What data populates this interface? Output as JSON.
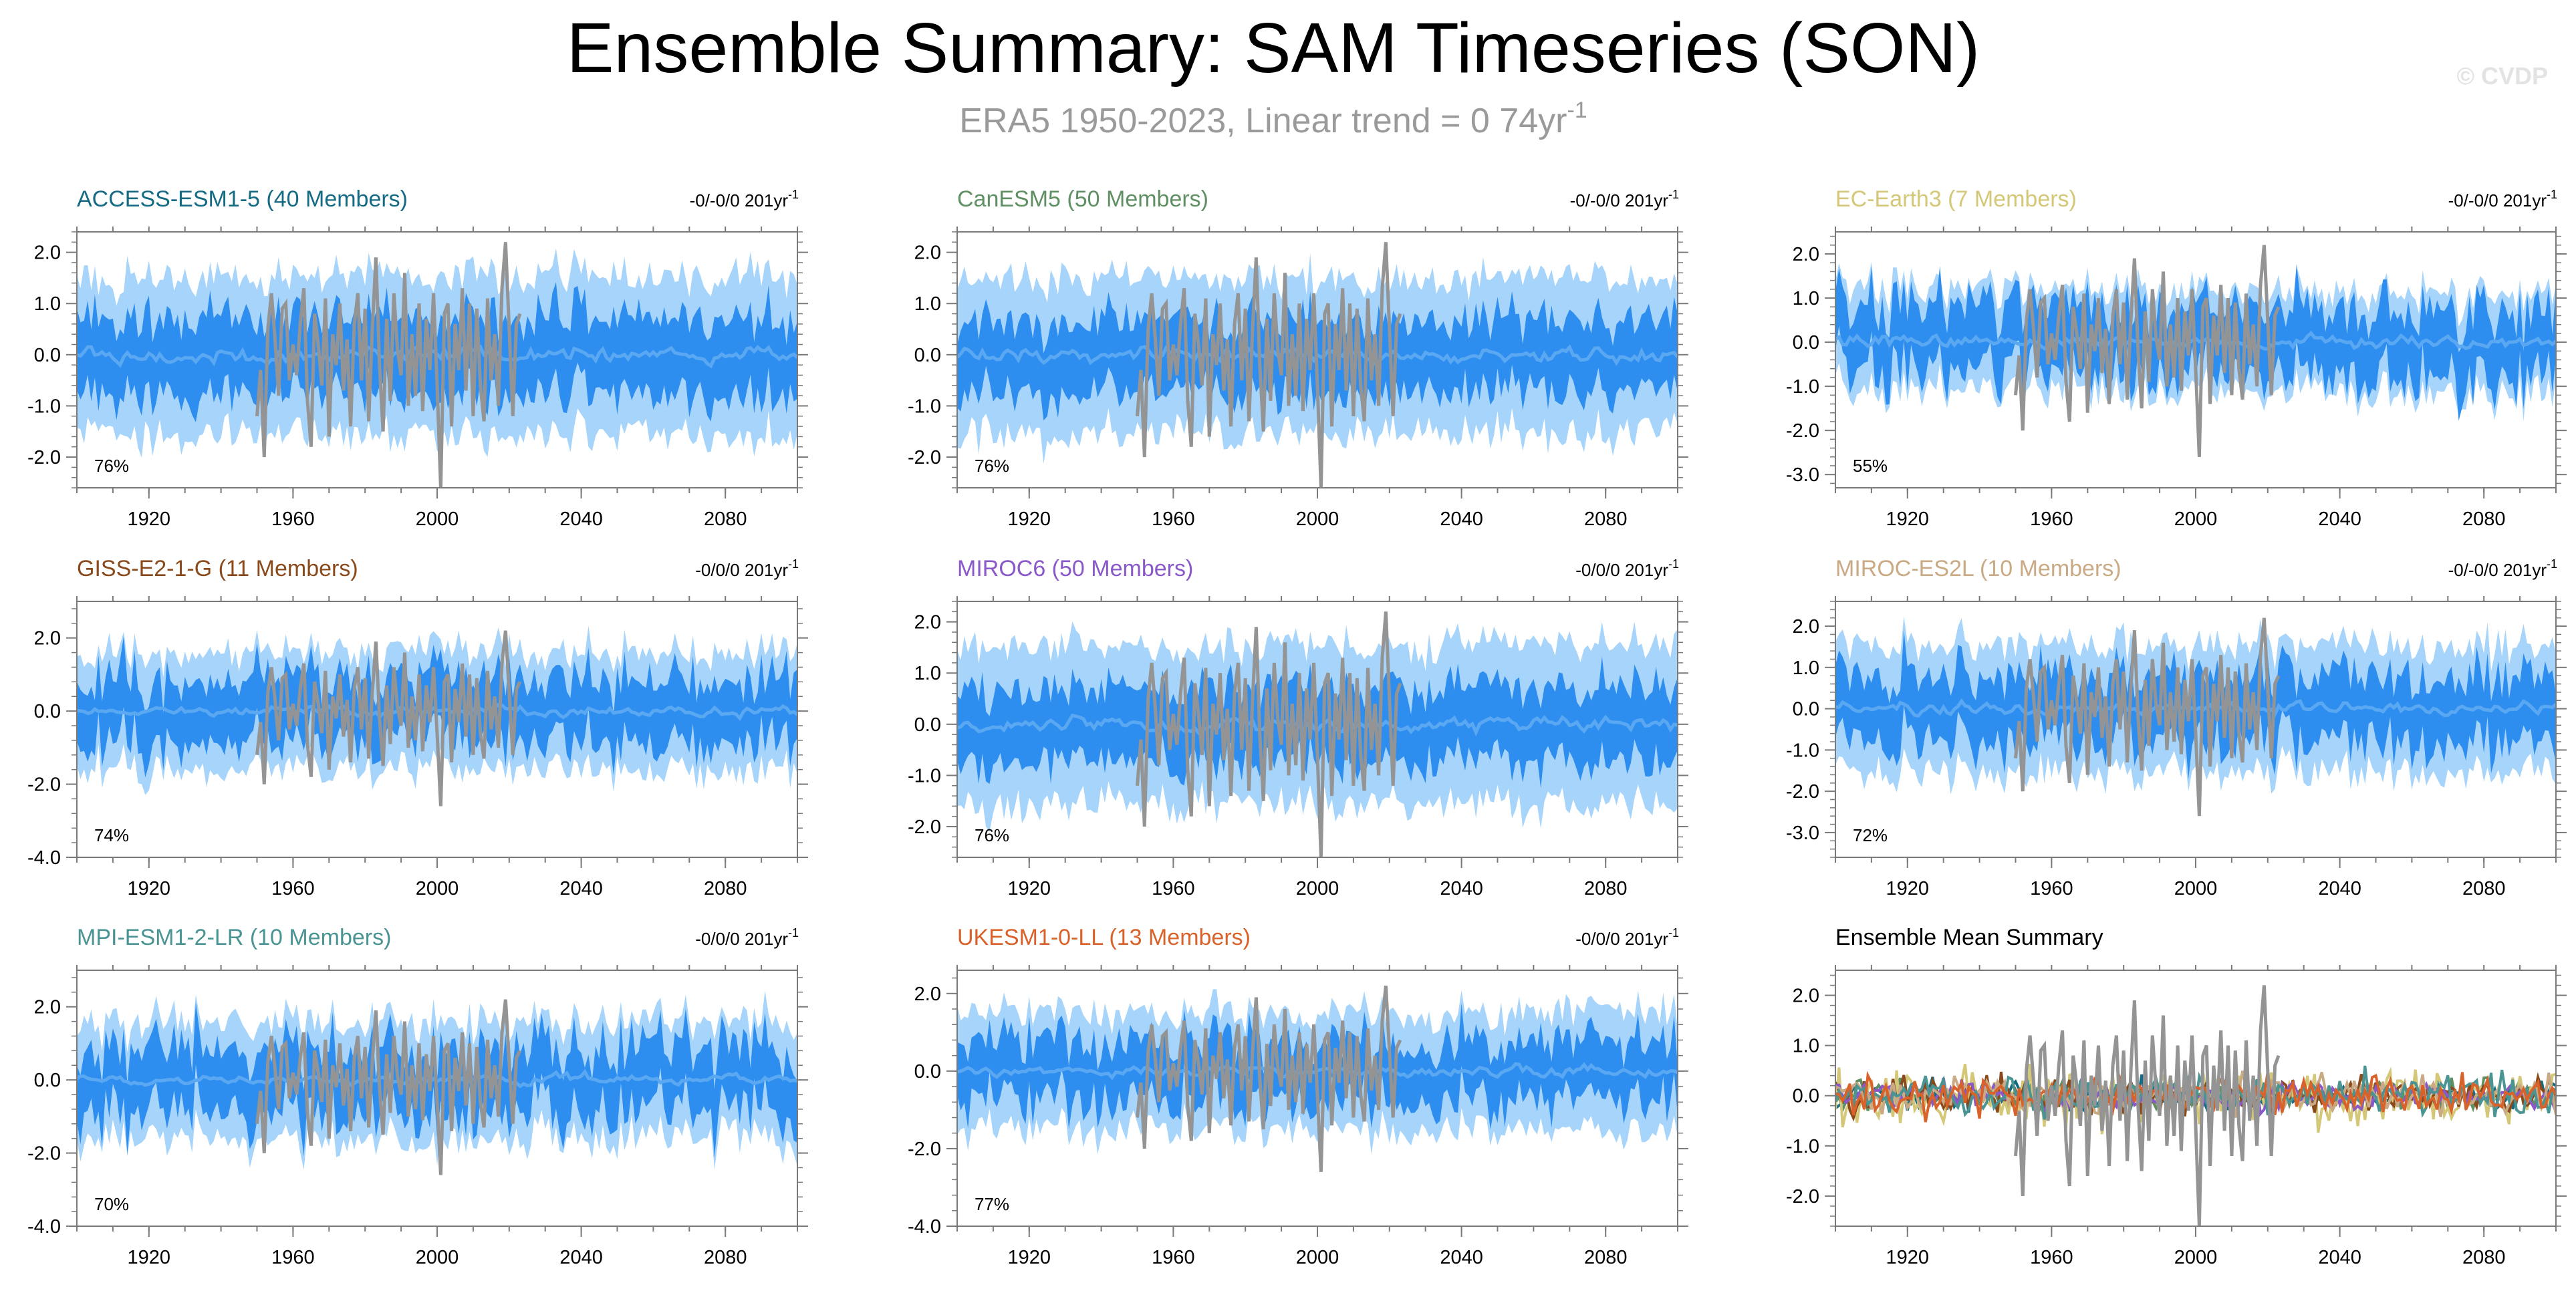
{
  "header": {
    "title": "Ensemble Summary: SAM Timeseries (SON)",
    "subtitle_main": "ERA5 1950-2023, Linear trend = 0 74yr",
    "subtitle_sup": "-1",
    "watermark": "© CVDP"
  },
  "colors": {
    "band_outer": "#a6d4fa",
    "band_inner": "#2e8ef0",
    "ensemble_mean": "#5aa7f2",
    "observations": "#949494",
    "axis": "#7a7a7a"
  },
  "chart_data": [
    {
      "type": "line",
      "model": "ACCESS-ESM1-5",
      "members_label": "(40 Members)",
      "title_color": "#156b83",
      "trend_label": "-0/-0/0 201yr",
      "trend_sup": "-1",
      "pct_label": "76%",
      "xlim": [
        1900,
        2100
      ],
      "xticks": [
        1920,
        1960,
        2000,
        2040,
        2080
      ],
      "ylim": [
        -2.6,
        2.4
      ],
      "yticks": [
        2.0,
        1.0,
        0.0,
        -1.0,
        -2.0
      ],
      "ytick_labels": [
        "2.0",
        "1.0",
        "0.0",
        "-1.0",
        "-2.0"
      ],
      "outer_halfwidth": 1.55,
      "inner_halfwidth": 0.75,
      "spread_amp": 0.5,
      "seed": 11
    },
    {
      "type": "line",
      "model": "CanESM5",
      "members_label": "(50 Members)",
      "title_color": "#5f8f62",
      "trend_label": "-0/-0/0 201yr",
      "trend_sup": "-1",
      "pct_label": "76%",
      "xlim": [
        1900,
        2100
      ],
      "xticks": [
        1920,
        1960,
        2000,
        2040,
        2080
      ],
      "ylim": [
        -2.6,
        2.4
      ],
      "yticks": [
        2.0,
        1.0,
        0.0,
        -1.0,
        -2.0
      ],
      "ytick_labels": [
        "2.0",
        "1.0",
        "0.0",
        "-1.0",
        "-2.0"
      ],
      "outer_halfwidth": 1.5,
      "inner_halfwidth": 0.7,
      "spread_amp": 0.4,
      "seed": 23
    },
    {
      "type": "line",
      "model": "EC-Earth3",
      "members_label": "(7 Members)",
      "title_color": "#d4c878",
      "trend_label": "-0/-0/0 201yr",
      "trend_sup": "-1",
      "pct_label": "55%",
      "xlim": [
        1900,
        2100
      ],
      "xticks": [
        1920,
        1960,
        2000,
        2040,
        2080
      ],
      "ylim": [
        -3.3,
        2.5
      ],
      "yticks": [
        2.0,
        1.0,
        0.0,
        -1.0,
        -2.0,
        -3.0
      ],
      "ytick_labels": [
        "2.0",
        "1.0",
        "0.0",
        "-1.0",
        "-2.0",
        "-3.0"
      ],
      "outer_halfwidth": 1.15,
      "inner_halfwidth": 0.75,
      "spread_amp": 0.8,
      "seed": 37
    },
    {
      "type": "line",
      "model": "GISS-E2-1-G",
      "members_label": "(11 Members)",
      "title_color": "#8a4a1c",
      "trend_label": "-0/0/0 201yr",
      "trend_sup": "-1",
      "pct_label": "74%",
      "xlim": [
        1900,
        2100
      ],
      "xticks": [
        1920,
        1960,
        2000,
        2040,
        2080
      ],
      "ylim": [
        -4.0,
        3.0
      ],
      "yticks": [
        2.0,
        0.0,
        -2.0,
        -4.0
      ],
      "ytick_labels": [
        "2.0",
        "0.0",
        "-2.0",
        "-4.0"
      ],
      "outer_halfwidth": 1.6,
      "inner_halfwidth": 0.85,
      "spread_amp": 0.8,
      "seed": 41
    },
    {
      "type": "line",
      "model": "MIROC6",
      "members_label": "(50 Members)",
      "title_color": "#8a58c8",
      "trend_label": "-0/0/0 201yr",
      "trend_sup": "-1",
      "pct_label": "76%",
      "xlim": [
        1900,
        2100
      ],
      "xticks": [
        1920,
        1960,
        2000,
        2040,
        2080
      ],
      "ylim": [
        -2.6,
        2.4
      ],
      "yticks": [
        2.0,
        1.0,
        0.0,
        -1.0,
        -2.0
      ],
      "ytick_labels": [
        "2.0",
        "1.0",
        "0.0",
        "-1.0",
        "-2.0"
      ],
      "outer_halfwidth": 1.55,
      "inner_halfwidth": 0.72,
      "spread_amp": 0.4,
      "seed": 53
    },
    {
      "type": "line",
      "model": "MIROC-ES2L",
      "members_label": "(10 Members)",
      "title_color": "#c9aa84",
      "trend_label": "-0/-0/0 201yr",
      "trend_sup": "-1",
      "pct_label": "72%",
      "xlim": [
        1900,
        2100
      ],
      "xticks": [
        1920,
        1960,
        2000,
        2040,
        2080
      ],
      "ylim": [
        -3.6,
        2.6
      ],
      "yticks": [
        2.0,
        1.0,
        0.0,
        -1.0,
        -2.0,
        -3.0
      ],
      "ytick_labels": [
        "2.0",
        "1.0",
        "0.0",
        "-1.0",
        "-2.0",
        "-3.0"
      ],
      "outer_halfwidth": 1.55,
      "inner_halfwidth": 0.8,
      "spread_amp": 0.6,
      "seed": 67
    },
    {
      "type": "line",
      "model": "MPI-ESM1-2-LR",
      "members_label": "(10 Members)",
      "title_color": "#4a9494",
      "trend_label": "-0/0/0 201yr",
      "trend_sup": "-1",
      "pct_label": "70%",
      "xlim": [
        1900,
        2100
      ],
      "xticks": [
        1920,
        1960,
        2000,
        2040,
        2080
      ],
      "ylim": [
        -4.0,
        3.0
      ],
      "yticks": [
        2.0,
        0.0,
        -2.0,
        -4.0
      ],
      "ytick_labels": [
        "2.0",
        "0.0",
        "-2.0",
        "-4.0"
      ],
      "outer_halfwidth": 1.6,
      "inner_halfwidth": 0.85,
      "spread_amp": 0.9,
      "seed": 79
    },
    {
      "type": "line",
      "model": "UKESM1-0-LL",
      "members_label": "(13 Members)",
      "title_color": "#d9622a",
      "trend_label": "-0/0/0 201yr",
      "trend_sup": "-1",
      "pct_label": "77%",
      "xlim": [
        1900,
        2100
      ],
      "xticks": [
        1920,
        1960,
        2000,
        2040,
        2080
      ],
      "ylim": [
        -4.0,
        2.6
      ],
      "yticks": [
        2.0,
        0.0,
        -2.0,
        -4.0
      ],
      "ytick_labels": [
        "2.0",
        "0.0",
        "-2.0",
        "-4.0"
      ],
      "outer_halfwidth": 1.5,
      "inner_halfwidth": 0.75,
      "spread_amp": 0.7,
      "seed": 83
    },
    {
      "type": "line",
      "model": "Ensemble Mean Summary",
      "members_label": "",
      "title_color": "#000000",
      "trend_label": "",
      "trend_sup": "",
      "pct_label": "",
      "xlim": [
        1900,
        2100
      ],
      "xticks": [
        1920,
        1960,
        2000,
        2040,
        2080
      ],
      "ylim": [
        -2.6,
        2.5
      ],
      "yticks": [
        2.0,
        1.0,
        0.0,
        -1.0,
        -2.0
      ],
      "ytick_labels": [
        "2.0",
        "1.0",
        "0.0",
        "-1.0",
        "-2.0"
      ],
      "summary": true,
      "series": [
        {
          "name": "ACCESS-ESM1-5",
          "color": "#156b83",
          "amp": 0.3
        },
        {
          "name": "CanESM5",
          "color": "#5f8f62",
          "amp": 0.28
        },
        {
          "name": "EC-Earth3",
          "color": "#d4c878",
          "amp": 0.55
        },
        {
          "name": "GISS-E2-1-G",
          "color": "#8a4a1c",
          "amp": 0.35
        },
        {
          "name": "MIROC6",
          "color": "#8a58c8",
          "amp": 0.28
        },
        {
          "name": "MIROC-ES2L",
          "color": "#c9aa84",
          "amp": 0.35
        },
        {
          "name": "MPI-ESM1-2-LR",
          "color": "#4a9494",
          "amp": 0.38
        },
        {
          "name": "UKESM1-0-LL",
          "color": "#d9622a",
          "amp": 0.38
        }
      ]
    }
  ],
  "observations": {
    "name": "ERA5",
    "x": [
      1950,
      1951,
      1952,
      1953,
      1954,
      1955,
      1956,
      1957,
      1958,
      1959,
      1960,
      1961,
      1962,
      1963,
      1964,
      1965,
      1966,
      1967,
      1968,
      1969,
      1970,
      1971,
      1972,
      1973,
      1974,
      1975,
      1976,
      1977,
      1978,
      1979,
      1980,
      1981,
      1982,
      1983,
      1984,
      1985,
      1986,
      1987,
      1988,
      1989,
      1990,
      1991,
      1992,
      1993,
      1994,
      1995,
      1996,
      1997,
      1998,
      1999,
      2000,
      2001,
      2002,
      2003,
      2004,
      2005,
      2006,
      2007,
      2008,
      2009,
      2010,
      2011,
      2012,
      2013,
      2014,
      2015,
      2016,
      2017,
      2018,
      2019,
      2020,
      2021,
      2022,
      2023
    ],
    "y": [
      -1.2,
      -0.3,
      -2.0,
      0.5,
      1.2,
      0.3,
      -0.8,
      0.9,
      1.0,
      -0.5,
      0.2,
      -0.4,
      0.6,
      1.3,
      -0.9,
      -1.8,
      0.8,
      0.2,
      -0.6,
      1.1,
      -1.6,
      0.4,
      -0.2,
      1.0,
      -0.7,
      0.3,
      -1.4,
      0.6,
      1.2,
      -0.5,
      0.9,
      -1.3,
      0.5,
      1.9,
      -0.2,
      -1.5,
      0.7,
      -0.9,
      1.2,
      0.1,
      -0.4,
      1.6,
      -1.0,
      0.4,
      -0.8,
      1.0,
      -1.1,
      0.7,
      -0.3,
      1.2,
      -0.6,
      -2.6,
      0.8,
      1.0,
      -1.4,
      0.6,
      -0.3,
      1.3,
      -0.7,
      1.0,
      -1.2,
      0.9,
      -0.6,
      -1.3,
      1.1,
      -0.5,
      0.4,
      -1.0,
      1.3,
      2.2,
      0.5,
      -1.2,
      0.6,
      0.8
    ]
  }
}
